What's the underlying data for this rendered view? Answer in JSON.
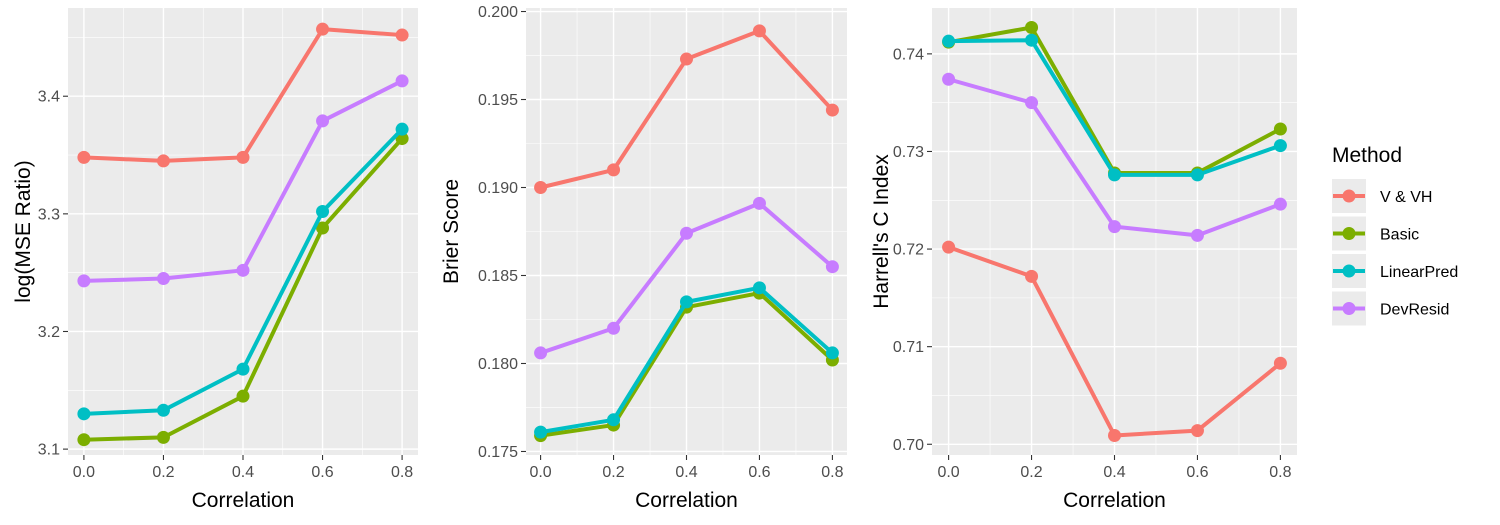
{
  "legend": {
    "title": "Method",
    "entries": [
      {
        "name": "V & VH",
        "color": "#F8766D"
      },
      {
        "name": "Basic",
        "color": "#7CAE00"
      },
      {
        "name": "LinearPred",
        "color": "#00BFC4"
      },
      {
        "name": "DevResid",
        "color": "#C77CFF"
      }
    ]
  },
  "chart_data": [
    {
      "type": "line",
      "title": "",
      "xlabel": "Correlation",
      "ylabel": "log(MSE Ratio)",
      "x": [
        0.0,
        0.2,
        0.4,
        0.6,
        0.8
      ],
      "x_tick_labels": [
        "0.0",
        "0.2",
        "0.4",
        "0.6",
        "0.8"
      ],
      "xlim": [
        -0.04,
        0.84
      ],
      "ylim": [
        3.095,
        3.475
      ],
      "y_ticks": [
        3.1,
        3.2,
        3.3,
        3.4
      ],
      "y_tick_labels": [
        "3.1",
        "3.2",
        "3.3",
        "3.4"
      ],
      "grid": true,
      "series": [
        {
          "name": "V & VH",
          "values": [
            3.348,
            3.345,
            3.348,
            3.457,
            3.452
          ]
        },
        {
          "name": "Basic",
          "values": [
            3.108,
            3.11,
            3.145,
            3.288,
            3.364
          ]
        },
        {
          "name": "LinearPred",
          "values": [
            3.13,
            3.133,
            3.168,
            3.302,
            3.372
          ]
        },
        {
          "name": "DevResid",
          "values": [
            3.243,
            3.245,
            3.252,
            3.379,
            3.413
          ]
        }
      ]
    },
    {
      "type": "line",
      "title": "",
      "xlabel": "Correlation",
      "ylabel": "Brier Score",
      "x": [
        0.0,
        0.2,
        0.4,
        0.6,
        0.8
      ],
      "x_tick_labels": [
        "0.0",
        "0.2",
        "0.4",
        "0.6",
        "0.8"
      ],
      "xlim": [
        -0.04,
        0.84
      ],
      "ylim": [
        0.1748,
        0.2002
      ],
      "y_ticks": [
        0.175,
        0.18,
        0.185,
        0.19,
        0.195,
        0.2
      ],
      "y_tick_labels": [
        "0.175",
        "0.180",
        "0.185",
        "0.190",
        "0.195",
        "0.200"
      ],
      "grid": true,
      "series": [
        {
          "name": "V & VH",
          "values": [
            0.19,
            0.191,
            0.1973,
            0.1989,
            0.1944
          ]
        },
        {
          "name": "Basic",
          "values": [
            0.1759,
            0.1765,
            0.1832,
            0.184,
            0.1802
          ]
        },
        {
          "name": "LinearPred",
          "values": [
            0.1761,
            0.1768,
            0.1835,
            0.1843,
            0.1806
          ]
        },
        {
          "name": "DevResid",
          "values": [
            0.1806,
            0.182,
            0.1874,
            0.1891,
            0.1855
          ]
        }
      ]
    },
    {
      "type": "line",
      "title": "",
      "xlabel": "Correlation",
      "ylabel": "Harrell's C Index",
      "x": [
        0.0,
        0.2,
        0.4,
        0.6,
        0.8
      ],
      "x_tick_labels": [
        "0.0",
        "0.2",
        "0.4",
        "0.6",
        "0.8"
      ],
      "xlim": [
        -0.04,
        0.84
      ],
      "ylim": [
        0.6989,
        0.7447
      ],
      "y_ticks": [
        0.7,
        0.71,
        0.72,
        0.73,
        0.74
      ],
      "y_tick_labels": [
        "0.70",
        "0.71",
        "0.72",
        "0.73",
        "0.74"
      ],
      "grid": true,
      "series": [
        {
          "name": "V & VH",
          "values": [
            0.7202,
            0.7172,
            0.7009,
            0.7014,
            0.7083
          ]
        },
        {
          "name": "Basic",
          "values": [
            0.7412,
            0.7427,
            0.7278,
            0.7278,
            0.7323
          ]
        },
        {
          "name": "LinearPred",
          "values": [
            0.7413,
            0.7414,
            0.7276,
            0.7276,
            0.7306
          ]
        },
        {
          "name": "DevResid",
          "values": [
            0.7374,
            0.735,
            0.7223,
            0.7214,
            0.7246
          ]
        }
      ]
    }
  ]
}
